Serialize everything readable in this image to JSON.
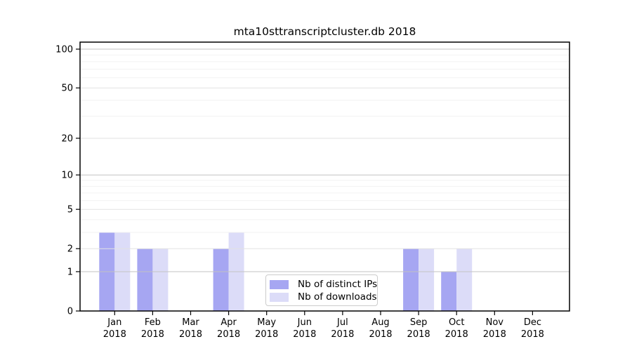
{
  "chart_data": {
    "type": "bar",
    "title": "mta10sttranscriptcluster.db 2018",
    "categories": [
      "Jan",
      "Feb",
      "Mar",
      "Apr",
      "May",
      "Jun",
      "Jul",
      "Aug",
      "Sep",
      "Oct",
      "Nov",
      "Dec"
    ],
    "x_tick_year": "2018",
    "series": [
      {
        "name": "Nb of distinct IPs",
        "color": "#a6a6f2",
        "values": [
          3,
          2,
          0,
          2,
          0,
          0,
          0,
          0,
          2,
          1,
          0,
          0
        ]
      },
      {
        "name": "Nb of downloads",
        "color": "#dcdcf8",
        "values": [
          3,
          2,
          0,
          3,
          0,
          0,
          0,
          0,
          2,
          2,
          0,
          0
        ]
      }
    ],
    "xlabel": "",
    "ylabel": "",
    "yscale": "log1p",
    "ylim": [
      0,
      113
    ],
    "yticks": [
      0,
      1,
      2,
      5,
      10,
      20,
      50,
      100
    ],
    "ytick_labels": [
      "0",
      "1",
      "2",
      "5",
      "10",
      "20",
      "50",
      "100"
    ],
    "minor_yticks": [
      3,
      4,
      6,
      7,
      8,
      9,
      30,
      40,
      60,
      70,
      80,
      90
    ],
    "grid": "horizontal",
    "legend_position": "lower center",
    "colors": {
      "decade_gridline": "#c3c3c3",
      "major_gridline": "#e2e2e2",
      "minor_gridline": "#f2f2f2",
      "spine": "#000000"
    }
  }
}
